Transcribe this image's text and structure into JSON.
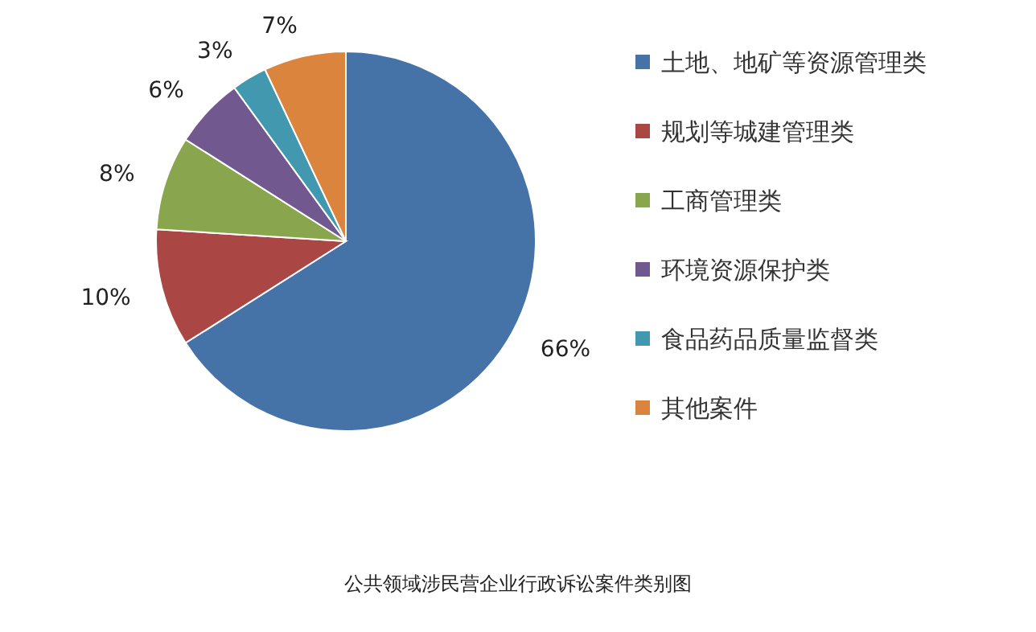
{
  "chart_data": {
    "type": "pie",
    "title": "公共领域涉民营企业行政诉讼案件类别图",
    "categories": [
      "土地、地矿等资源管理类",
      "规划等城建管理类",
      "工商管理类",
      "环境资源保护类",
      "食品药品质量监督类",
      "其他案件"
    ],
    "values": [
      66,
      10,
      8,
      6,
      3,
      7
    ],
    "colors": [
      "#4572a7",
      "#aa4643",
      "#89a54e",
      "#71588f",
      "#4198af",
      "#db843d"
    ],
    "value_labels": [
      "66%",
      "10%",
      "8%",
      "6%",
      "3%",
      "7%"
    ],
    "legend": "right"
  }
}
